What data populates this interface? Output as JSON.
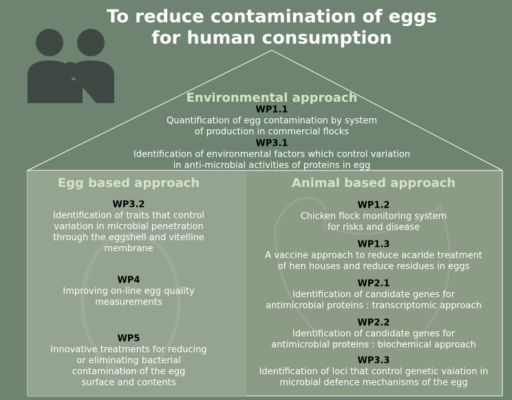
{
  "title_lines": [
    "To reduce contamination of eggs",
    "for human consumption"
  ],
  "environmental_approach": {
    "heading": "Environmental approach",
    "items": [
      {
        "code": "WP1.1",
        "lines": [
          "Quantification of egg contamination by system",
          "of production in commercial flocks"
        ]
      },
      {
        "code": "WP3.1",
        "lines": [
          "Identification of environmental factors which control variation",
          "in anti-microbial activities of proteins in egg"
        ]
      }
    ]
  },
  "egg_based_approach": {
    "heading": "Egg based approach",
    "items": [
      {
        "code": "WP3.2",
        "lines": [
          "Identification of traits that control",
          "variation in microbial penetration",
          "through the eggshell and vitelline",
          "membrane"
        ]
      },
      {
        "code": "WP4",
        "lines": [
          "Improving on-line egg quality",
          "measurements"
        ]
      },
      {
        "code": "WP5",
        "lines": [
          "Innovative treatments for reducing",
          "or eliminating bacterial",
          "contamination of the egg",
          "surface and contents"
        ]
      }
    ]
  },
  "animal_based_approach": {
    "heading": "Animal based approach",
    "items": [
      {
        "code": "WP1.2",
        "lines": [
          "Chicken flock monitoring system",
          "for risks and disease"
        ]
      },
      {
        "code": "WP1.3",
        "lines": [
          "A vaccine approach to reduce acaride treatment",
          "of hen houses and reduce residues in eggs"
        ]
      },
      {
        "code": "WP2.1",
        "lines": [
          "Identification of candidate genes for",
          "antimicrobial proteins : transcriptomic approach"
        ]
      },
      {
        "code": "WP2.2",
        "lines": [
          "Identification of candidate genes for",
          "antimicrobial proteins : biochemical approach"
        ]
      },
      {
        "code": "WP3.3",
        "lines": [
          "Identification of loci that control genetic vaiation in",
          "microbial defence mechanisms of the egg"
        ]
      }
    ]
  }
}
